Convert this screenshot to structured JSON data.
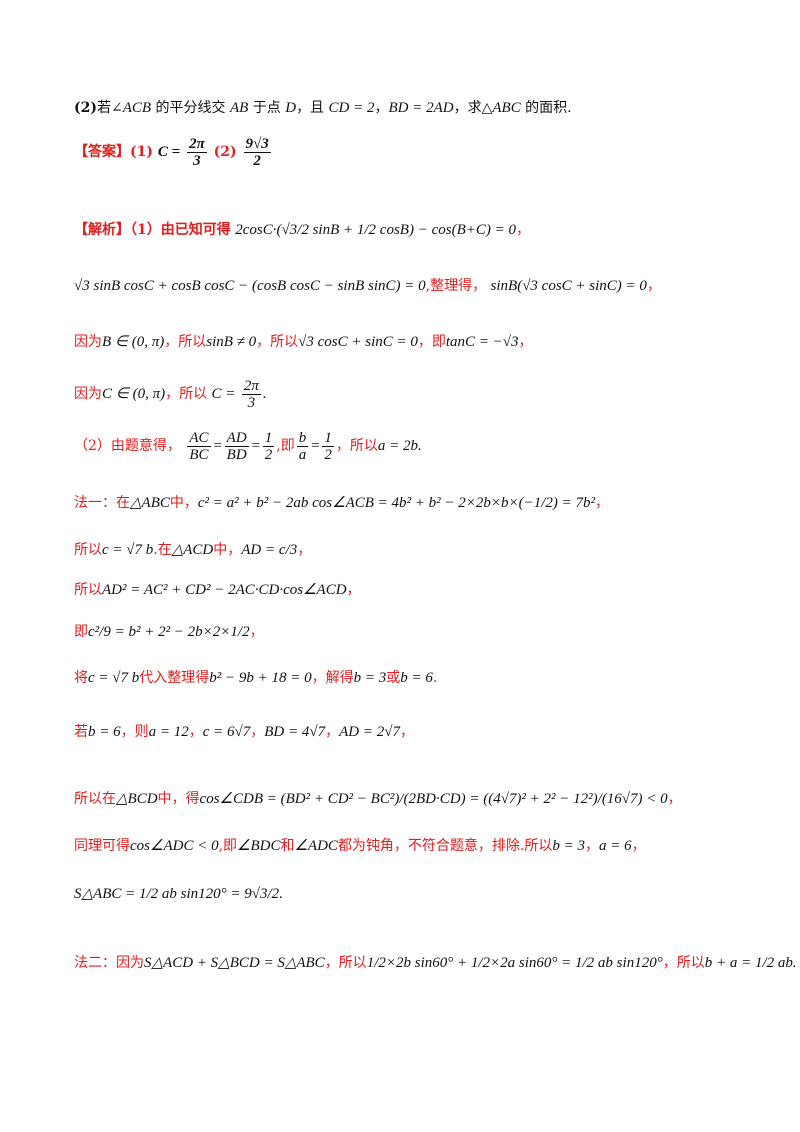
{
  "q2": {
    "label": "(2)",
    "text_a": "若∠",
    "acb": "ACB",
    "text_b": " 的平分线交 ",
    "ab": "AB",
    "text_c": " 于点 ",
    "d": "D",
    "text_d": "，且 ",
    "cd_eq": "CD = 2",
    "text_e": "，",
    "bd_eq": "BD = 2AD",
    "text_f": "，求△",
    "abc": "ABC",
    "text_g": " 的面积."
  },
  "answer": {
    "label": "【答案】(1)",
    "c_lhs": "C =",
    "num1": "2π",
    "den1": "3",
    "part2": "(2)",
    "num2": "9√3",
    "den2": "2"
  },
  "sol1": {
    "label": "【解析】（1）由已知可得",
    "eq1": "2cosC·(√3/2 sinB + 1/2 cosB) − cos(B+C) = 0",
    "tail1": "，",
    "eq2": "√3 sinB cosC + cosB cosC − (cosB cosC − sinB sinC) = 0",
    "mid2": ",整理得，",
    "eq2b": "sinB(√3 cosC + sinC) = 0",
    "tail2": "，",
    "because": "因为",
    "eq3": "B ∈ (0, π)",
    "so1": "，所以",
    "eq3b": "sinB ≠ 0",
    "so2": "，所以",
    "eq3c": "√3 cosC + sinC = 0",
    "ji": "，即",
    "eq3d": "tanC = −√3",
    "tail3": "，",
    "because2": "因为",
    "eq4": "C ∈ (0, π)",
    "so3": "，所以",
    "c_lhs": "C =",
    "num": "2π",
    "den": "3",
    "dot": "."
  },
  "sol2": {
    "label": "（2）由题意得，",
    "f1n": "AC",
    "f1d": "BC",
    "f2n": "AD",
    "f2d": "BD",
    "f3n": "1",
    "f3d": "2",
    "ji": ",即",
    "f4n": "b",
    "f4d": "a",
    "f5n": "1",
    "f5d": "2",
    "so": "，所以",
    "eq": "a = 2b",
    "dot": "."
  },
  "m1": {
    "label": "法一：在",
    "tri": "△ABC",
    "zhong": "中，",
    "eq": "c² = a² + b² − 2ab cos∠ACB = 4b² + b² − 2×2b×b×(−1/2) = 7b²",
    "tail": "，",
    "l2a": "所以",
    "l2eq": "c = √7 b",
    "l2b": ".在",
    "l2tri": "△ACD",
    "l2c": "中，",
    "l2eq2": "AD = c/3",
    "l2d": "，",
    "l3a": "所以",
    "l3eq": "AD² = AC² + CD² − 2AC·CD·cos∠ACD",
    "l3b": "，",
    "l4a": "即",
    "l4eq": "c²/9 = b² + 2² − 2b×2×1/2",
    "l4b": "，",
    "l5a": "将",
    "l5eq": "c = √7 b",
    "l5b": "代入整理得",
    "l5eq2": "b² − 9b + 18 = 0",
    "l5c": "，解得",
    "l5eq3": "b = 3",
    "l5d": "或",
    "l5eq4": "b = 6",
    "l5e": ".",
    "l6a": "若",
    "l6eq": "b = 6",
    "l6b": "，则",
    "l6eq2": "a = 12",
    "l6c": "，",
    "l6eq3": "c = 6√7",
    "l6d": "，",
    "l6eq4": "BD = 4√7",
    "l6e": "，",
    "l6eq5": "AD = 2√7",
    "l6f": "，",
    "l7a": "所以在",
    "l7tri": "△BCD",
    "l7b": "中，得",
    "l7eq": "cos∠CDB = (BD² + CD² − BC²)/(2BD·CD) = ((4√7)² + 2² − 12²)/(16√7) < 0",
    "l7c": "，",
    "l8a": "同理可得",
    "l8eq": "cos∠ADC < 0",
    "l8b": ",即",
    "l8eq2": "∠BDC",
    "l8c": "和",
    "l8eq3": "∠ADC",
    "l8d": "都为钝角，不符合题意，排除.所以",
    "l8eq4": "b = 3",
    "l8e": "，",
    "l8eq5": "a = 6",
    "l8f": "，",
    "l9eq": "S△ABC = 1/2 ab sin120° = 9√3/2",
    "l9dot": "."
  },
  "m2": {
    "label": "法二：因为",
    "eq1": "S△ACD + S△BCD = S△ABC",
    "so": "，所以",
    "eq2": "1/2×2b sin60° + 1/2×2a sin60° = 1/2 ab sin120°",
    "so2": "，所以",
    "eq3": "b + a = 1/2 ab",
    "dot": "."
  }
}
